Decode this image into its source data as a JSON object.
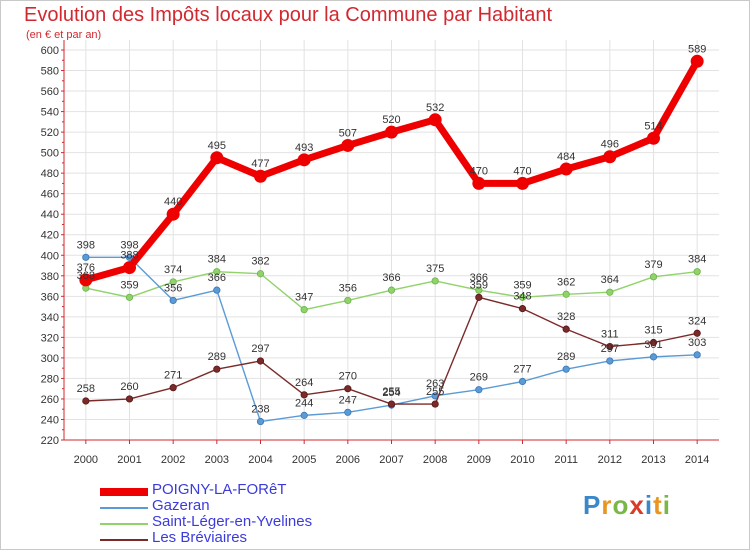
{
  "title": "Evolution des Impôts locaux pour la Commune par Habitant",
  "subtitle": "(en € et par an)",
  "logo": {
    "letters": [
      "P",
      "r",
      "o",
      "x",
      "i",
      "t",
      "i"
    ],
    "colors": [
      "#3a87c9",
      "#e8961f",
      "#7ab648",
      "#d93b2b",
      "#3a87c9",
      "#e8961f",
      "#7ab648"
    ]
  },
  "chart_data": {
    "type": "line",
    "title": "Evolution des Impôts locaux pour la Commune par Habitant",
    "subtitle": "(en € et par an)",
    "xlabel": "",
    "ylabel": "",
    "ylim": [
      220,
      600
    ],
    "yticks": [
      220,
      240,
      260,
      280,
      300,
      320,
      340,
      360,
      380,
      400,
      420,
      440,
      460,
      480,
      500,
      520,
      540,
      560,
      580,
      600
    ],
    "grid": true,
    "legend": "bottom-left",
    "x": [
      "2000",
      "2001",
      "2002",
      "2003",
      "2004",
      "2005",
      "2006",
      "2007",
      "2008",
      "2009",
      "2010",
      "2011",
      "2012",
      "2013",
      "2014"
    ],
    "series": [
      {
        "name": "POIGNY-LA-FORêT",
        "color": "#ef0000",
        "values": [
          376,
          388,
          440,
          495,
          477,
          493,
          507,
          520,
          532,
          470,
          470,
          484,
          496,
          514,
          589
        ],
        "labels": [
          "376",
          "388",
          "440",
          "495",
          "477",
          "493",
          "507",
          "520",
          "532",
          "470",
          "470",
          "484",
          "496",
          "514",
          "589"
        ]
      },
      {
        "name": "Gazeran",
        "color": "#5b9bd5",
        "values": [
          398,
          398,
          356,
          366,
          238,
          244,
          247,
          254,
          263,
          269,
          277,
          289,
          297,
          301,
          303
        ],
        "labels": [
          "398",
          "398",
          "356",
          "366",
          "238",
          "244",
          "247",
          "254",
          "263",
          "269",
          "277",
          "289",
          "297",
          "301",
          "303"
        ]
      },
      {
        "name": "Saint-Léger-en-Yvelines",
        "color": "#8fd36a",
        "values": [
          368,
          359,
          374,
          384,
          382,
          347,
          356,
          366,
          375,
          366,
          359,
          362,
          364,
          379,
          384
        ],
        "labels": [
          "368",
          "359",
          "374",
          "384",
          "382",
          "347",
          "356",
          "366",
          "375",
          "366",
          "359",
          "362",
          "364",
          "379",
          "384"
        ]
      },
      {
        "name": "Les Bréviaires",
        "color": "#7b2a2a",
        "values": [
          258,
          260,
          271,
          289,
          297,
          264,
          270,
          255,
          255,
          359,
          348,
          328,
          311,
          315,
          324
        ],
        "labels": [
          "258",
          "260",
          "271",
          "289",
          "297",
          "264",
          "270",
          "255",
          "255",
          "359",
          "348",
          "328",
          "311",
          "315",
          "324"
        ]
      }
    ]
  }
}
